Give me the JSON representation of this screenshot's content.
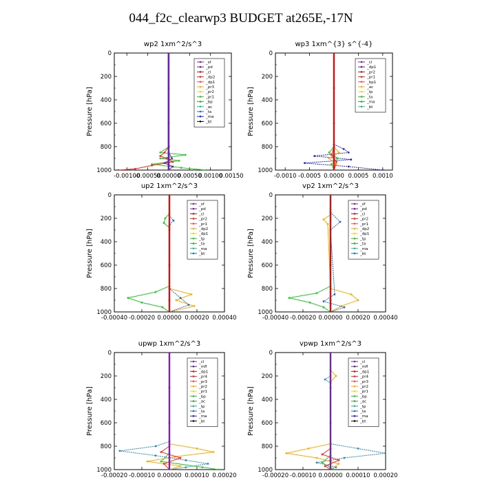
{
  "figure_title": "044_f2c_clearwp3  BUDGET at265E,-17N",
  "chart_data": [
    {
      "type": "line",
      "title": "wp2   1xm^2/s^3",
      "ylabel": "Pressure [hPa]",
      "xlim": [
        -0.0013,
        0.0015
      ],
      "xticks": [
        -0.001,
        -0.0005,
        0.0,
        0.0005,
        0.001,
        0.0015
      ],
      "xticklabels": [
        "-0.00100",
        "-0.00050",
        "0.00000",
        "0.00050",
        "0.00100",
        "0.00150"
      ],
      "ylim": [
        1000,
        0
      ],
      "yticks": [
        0,
        200,
        400,
        600,
        800,
        1000
      ],
      "legend_position": "top-right",
      "legend": [
        "_sf",
        "_pd",
        "_cl",
        "_dp2",
        "_dp1",
        "_pr3",
        "_pr2",
        "_pr1",
        "_bp",
        "_ac",
        "_ta",
        "_ma",
        "_bt"
      ],
      "series": [
        {
          "name": "_ac",
          "color": "#22cc22",
          "y": [
            800,
            850,
            870,
            900,
            920,
            950,
            980,
            1000
          ],
          "x": [
            1e-05,
            -0.0002,
            0.0004,
            -0.0002,
            0.00025,
            -0.0004,
            0.0003,
            0.0009
          ]
        },
        {
          "name": "_dp1",
          "color": "#ff2222",
          "y": [
            800,
            850,
            880,
            900,
            930,
            960,
            990,
            1000
          ],
          "x": [
            0.0,
            -0.0001,
            -0.0002,
            -5e-05,
            0.0001,
            -0.0004,
            -0.0008,
            -0.0012
          ]
        },
        {
          "name": "_pd",
          "color": "#6622aa",
          "y": [
            850,
            900,
            940,
            970,
            1000
          ],
          "x": [
            0.0,
            8e-05,
            -0.0001,
            0.0001,
            0.0
          ]
        },
        {
          "name": "_bt",
          "color": "#44bbee",
          "y": [
            0,
            500,
            1000
          ],
          "x": [
            0.0,
            0.0,
            0.0
          ]
        },
        {
          "name": "_cl",
          "color": "#cc1111",
          "y": [
            0,
            300,
            600,
            900,
            1000
          ],
          "x": [
            0.0,
            0.0,
            0.0,
            0.0,
            0.0
          ]
        },
        {
          "name": "_sf",
          "color": "#6622aa",
          "y": [
            0,
            300,
            600,
            900,
            1000
          ],
          "x": [
            0.0,
            0.0,
            0.0,
            0.0,
            0.0
          ]
        }
      ]
    },
    {
      "type": "line",
      "title": "wp3   1xm^{3} s^{-4}",
      "ylabel": "Pressure [hPa]",
      "xlim": [
        -0.0012,
        0.0012
      ],
      "xticks": [
        -0.001,
        -0.0005,
        0.0,
        0.0005,
        0.001
      ],
      "xticklabels": [
        "-0.0010",
        "-0.0005",
        "0.0000",
        "0.0005",
        "0.0010"
      ],
      "ylim": [
        1000,
        0
      ],
      "yticks": [
        0,
        200,
        400,
        600,
        800,
        1000
      ],
      "legend_position": "top-right",
      "legend": [
        "_cl",
        "_dp1",
        "_pr2",
        "_pr1",
        "_bp1",
        "_ac",
        "_tp",
        "_ta",
        "_ma",
        "_bt"
      ],
      "series": [
        {
          "name": "_ta",
          "color": "#2222cc",
          "y": [
            780,
            820,
            850,
            880,
            910,
            940,
            970,
            1000
          ],
          "x": [
            0.0,
            0.0002,
            0.0003,
            -0.0004,
            0.00035,
            -0.0006,
            0.0003,
            0.001
          ]
        },
        {
          "name": "_ac",
          "color": "#22cc22",
          "y": [
            800,
            850,
            900,
            950,
            1000
          ],
          "x": [
            0.0,
            -0.0001,
            8e-05,
            -5e-05,
            0.0
          ]
        },
        {
          "name": "_pr2",
          "color": "#ffaa00",
          "y": [
            800,
            850,
            900,
            950,
            1000
          ],
          "x": [
            0.0,
            0.0001,
            -0.0001,
            5e-05,
            0.0
          ]
        },
        {
          "name": "_dp1",
          "color": "#ff2222",
          "y": [
            800,
            870,
            930,
            1000
          ],
          "x": [
            0.0,
            -5e-05,
            5e-05,
            0.0
          ]
        },
        {
          "name": "_cl",
          "color": "#cc1111",
          "y": [
            0,
            300,
            600,
            900,
            1000
          ],
          "x": [
            0.0,
            0.0,
            0.0,
            0.0,
            0.0
          ]
        }
      ]
    },
    {
      "type": "line",
      "title": "up2   1xm^2/s^3",
      "ylabel": "Pressure [hPa]",
      "xlim": [
        -0.0004,
        0.0004
      ],
      "xticks": [
        -0.0004,
        -0.0002,
        0.0,
        0.0002,
        0.0004
      ],
      "xticklabels": [
        "-0.00040",
        "-0.00020",
        "0.00000",
        "0.00020",
        "0.00040"
      ],
      "ylim": [
        1000,
        0
      ],
      "yticks": [
        0,
        200,
        400,
        600,
        800,
        1000
      ],
      "legend_position": "top-right",
      "legend": [
        "_sf",
        "_pd",
        "_cl",
        "_pr2",
        "_pr1",
        "_dp2",
        "_dp1",
        "_tp",
        "_ta",
        "_ma",
        "_bt"
      ],
      "series": [
        {
          "name": "_dp2",
          "color": "#22cc22",
          "y": [
            160,
            200,
            240,
            280,
            780,
            830,
            880,
            920,
            960,
            1000
          ],
          "x": [
            0.0,
            -3e-05,
            -4e-05,
            0.0,
            0.0,
            -0.0001,
            -0.0003,
            -0.0002,
            -5e-05,
            0.0
          ]
        },
        {
          "name": "_pr2",
          "color": "#ffaa00",
          "y": [
            800,
            850,
            900,
            950,
            1000
          ],
          "x": [
            0.0,
            0.00016,
            5e-05,
            0.00018,
            0.0
          ]
        },
        {
          "name": "_tp",
          "color": "#2266cc",
          "y": [
            180,
            220,
            260,
            800,
            880,
            940,
            1000
          ],
          "x": [
            0.0,
            3e-05,
            0.0,
            0.0,
            8e-05,
            0.00014,
            0.0
          ]
        },
        {
          "name": "_cl",
          "color": "#cc1111",
          "y": [
            0,
            300,
            600,
            900,
            1000
          ],
          "x": [
            0.0,
            0.0,
            0.0,
            0.0,
            0.0
          ]
        }
      ]
    },
    {
      "type": "line",
      "title": "vp2   1xm^2/s^3",
      "ylabel": "Pressure [hPa]",
      "xlim": [
        -0.0004,
        0.0004
      ],
      "xticks": [
        -0.0004,
        -0.0002,
        0.0,
        0.0002,
        0.0004
      ],
      "xticklabels": [
        "-0.00040",
        "-0.00020",
        "0.00000",
        "0.00020",
        "0.00040"
      ],
      "ylim": [
        1000,
        0
      ],
      "yticks": [
        0,
        200,
        400,
        600,
        800,
        1000
      ],
      "legend_position": "top-right",
      "legend": [
        "_sf",
        "_pd",
        "_cl",
        "_pr2",
        "_pr1",
        "_dp2",
        "_dp1",
        "_tp",
        "_ta",
        "_ma",
        "_bt"
      ],
      "series": [
        {
          "name": "_dp2",
          "color": "#22cc22",
          "y": [
            780,
            840,
            880,
            920,
            960,
            1000
          ],
          "x": [
            0.0,
            -0.0001,
            -0.0003,
            -0.00015,
            -5e-05,
            0.0
          ]
        },
        {
          "name": "_pr2",
          "color": "#ffaa00",
          "y": [
            170,
            210,
            250,
            800,
            850,
            900,
            950,
            1000
          ],
          "x": [
            0.0,
            -5e-05,
            -2e-05,
            0.0,
            0.00015,
            0.0002,
            8e-05,
            0.0
          ]
        },
        {
          "name": "_tp",
          "color": "#2266cc",
          "y": [
            150,
            230,
            300,
            850,
            910,
            960,
            1000
          ],
          "x": [
            0.0,
            7e-05,
            0.0,
            3e-05,
            -5e-05,
            0.0001,
            0.0
          ]
        },
        {
          "name": "_cl",
          "color": "#cc1111",
          "y": [
            0,
            300,
            600,
            900,
            1000
          ],
          "x": [
            0.0,
            0.0,
            0.0,
            0.0,
            0.0
          ]
        }
      ]
    },
    {
      "type": "line",
      "title": "upwp   1xm^2/s^3",
      "ylabel": "Pressure [hPa]",
      "xlim": [
        -0.0002,
        0.0002
      ],
      "xticks": [
        -0.0002,
        -0.0001,
        0.0,
        0.0001,
        0.0002
      ],
      "xticklabels": [
        "-0.00020",
        "-0.00010",
        "0.00000",
        "0.00010",
        "0.00020"
      ],
      "ylim": [
        1000,
        0
      ],
      "yticks": [
        0,
        200,
        400,
        600,
        800,
        1000
      ],
      "legend_position": "top-right",
      "legend": [
        "_cl",
        "_mfl",
        "_dp1",
        "_pr4",
        "_pr3",
        "_pr2",
        "_pr1",
        "_bp",
        "_ac",
        "_tp",
        "_ta",
        "_ma",
        "_bt"
      ],
      "series": [
        {
          "name": "_tp",
          "color": "#2288bb",
          "y": [
            760,
            800,
            840,
            880,
            920,
            950,
            980,
            1000
          ],
          "x": [
            0.0,
            -5e-05,
            -0.00018,
            -5e-05,
            6e-05,
            0.00014,
            6e-05,
            0.0
          ]
        },
        {
          "name": "_pr2",
          "color": "#ffaa00",
          "y": [
            780,
            820,
            850,
            890,
            930,
            970,
            1000
          ],
          "x": [
            0.0,
            0.0001,
            0.00016,
            2e-05,
            -8e-05,
            4e-05,
            0.0
          ]
        },
        {
          "name": "_ac",
          "color": "#22cc22",
          "y": [
            860,
            930,
            980,
            1000
          ],
          "x": [
            0.0,
            -3e-05,
            0.00012,
            0.00018
          ]
        },
        {
          "name": "_dp1",
          "color": "#ff2222",
          "y": [
            800,
            850,
            900,
            950,
            1000
          ],
          "x": [
            0.0,
            -3e-05,
            4e-05,
            -2e-05,
            0.0
          ]
        },
        {
          "name": "_cl",
          "color": "#7722aa",
          "y": [
            0,
            300,
            600,
            900,
            1000
          ],
          "x": [
            0.0,
            0.0,
            0.0,
            0.0,
            0.0
          ]
        }
      ]
    },
    {
      "type": "line",
      "title": "vpwp   1xm^2/s^3",
      "ylabel": "Pressure [hPa]",
      "xlim": [
        -0.0002,
        0.0002
      ],
      "xticks": [
        -0.0002,
        -0.0001,
        0.0,
        0.0001,
        0.0002
      ],
      "xticklabels": [
        "-0.00020",
        "-0.00010",
        "0.00000",
        "0.00010",
        "0.00020"
      ],
      "ylim": [
        1000,
        0
      ],
      "yticks": [
        0,
        200,
        400,
        600,
        800,
        1000
      ],
      "legend_position": "top-right",
      "legend": [
        "_cl",
        "_mfl",
        "_dp1",
        "_pr4",
        "_pr3",
        "_pr2",
        "_pr1",
        "_bp",
        "_ac",
        "_tp",
        "_ta",
        "_ma",
        "_bt"
      ],
      "series": [
        {
          "name": "_tp",
          "color": "#2288bb",
          "y": [
            200,
            230,
            260,
            780,
            820,
            860,
            900,
            940,
            980,
            1000
          ],
          "x": [
            0.0,
            -2e-05,
            0.0,
            0.0,
            0.0001,
            0.0002,
            5e-05,
            -5e-05,
            2e-05,
            0.0
          ]
        },
        {
          "name": "_pr2",
          "color": "#ffaa00",
          "y": [
            150,
            200,
            250,
            780,
            820,
            860,
            900,
            950,
            1000
          ],
          "x": [
            0.0,
            2e-05,
            0.0,
            0.0,
            -8e-05,
            -0.00016,
            -5e-05,
            3e-05,
            0.0
          ]
        },
        {
          "name": "_ac",
          "color": "#22cc22",
          "y": [
            880,
            940,
            1000
          ],
          "x": [
            0.0,
            -3e-05,
            1e-05
          ]
        },
        {
          "name": "_dp1",
          "color": "#ff2222",
          "y": [
            820,
            870,
            920,
            970,
            1000
          ],
          "x": [
            0.0,
            -3e-05,
            3e-05,
            -2e-05,
            0.0
          ]
        },
        {
          "name": "_cl",
          "color": "#7722aa",
          "y": [
            0,
            300,
            600,
            900,
            1000
          ],
          "x": [
            0.0,
            0.0,
            0.0,
            0.0,
            0.0
          ]
        }
      ]
    }
  ]
}
